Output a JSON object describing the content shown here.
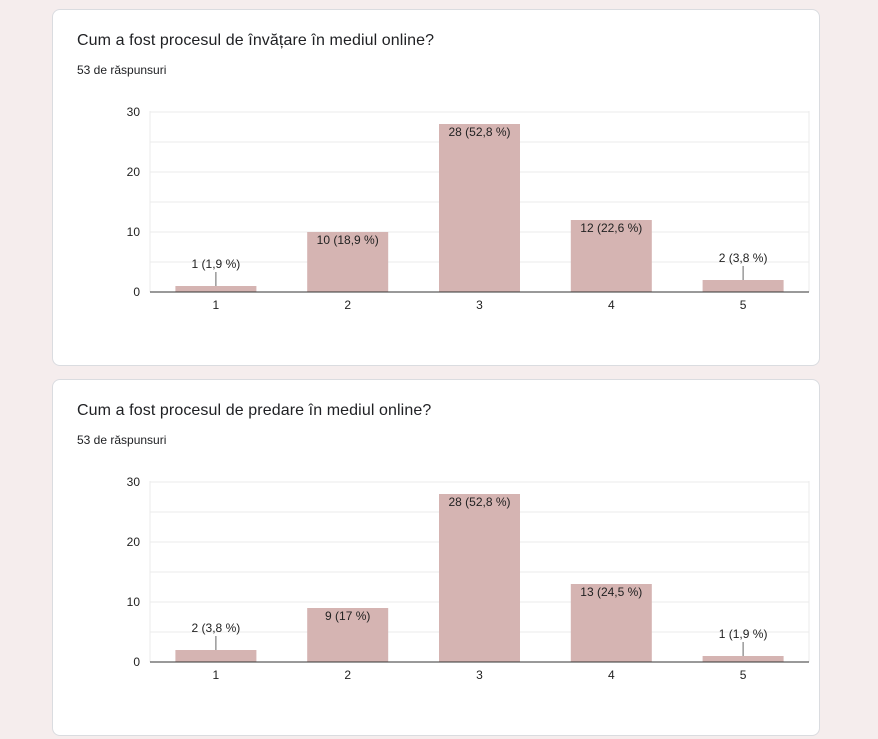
{
  "questions": [
    {
      "title": "Cum a fost procesul de învățare în mediul online?",
      "responses": "53 de răspunsuri"
    },
    {
      "title": "Cum a fost procesul de predare în mediul online?",
      "responses": "53 de răspunsuri"
    }
  ],
  "colors": {
    "bar": "#d5b4b2",
    "axis": "#333333",
    "grid": "#ebebeb",
    "text": "#222222"
  },
  "chart_data": [
    {
      "type": "bar",
      "categories": [
        "1",
        "2",
        "3",
        "4",
        "5"
      ],
      "values": [
        1,
        10,
        28,
        12,
        2
      ],
      "data_labels": [
        "1 (1,9 %)",
        "10 (18,9 %)",
        "28 (52,8 %)",
        "12 (22,6 %)",
        "2 (3,8 %)"
      ],
      "yticks": [
        "0",
        "10",
        "20",
        "30"
      ],
      "ylim": [
        0,
        30
      ],
      "grid": true
    },
    {
      "type": "bar",
      "categories": [
        "1",
        "2",
        "3",
        "4",
        "5"
      ],
      "values": [
        2,
        9,
        28,
        13,
        1
      ],
      "data_labels": [
        "2 (3,8 %)",
        "9 (17 %)",
        "28 (52,8 %)",
        "13 (24,5 %)",
        "1 (1,9 %)"
      ],
      "yticks": [
        "0",
        "10",
        "20",
        "30"
      ],
      "ylim": [
        0,
        30
      ],
      "grid": true
    }
  ]
}
